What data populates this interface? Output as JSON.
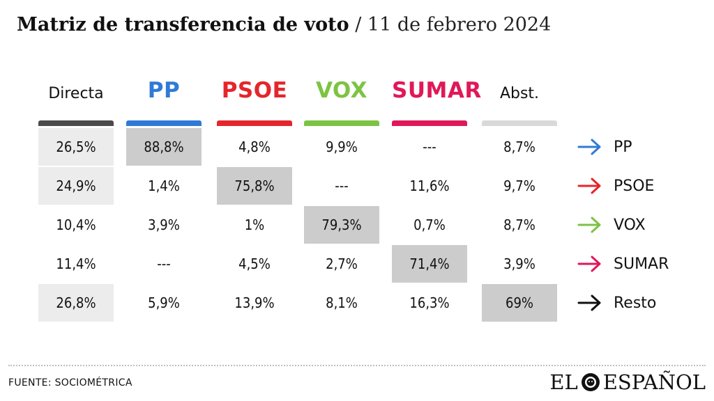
{
  "title": {
    "bold": "Matriz de transferencia de voto",
    "separator": "/",
    "date": "11 de febrero 2024"
  },
  "chart_data": {
    "type": "table",
    "title": "Matriz de transferencia de voto / 11 de febrero 2024",
    "columns": [
      {
        "label": "Directa",
        "color": "#4a4a4a",
        "style": "plain"
      },
      {
        "label": "PP",
        "color": "#2f7ad6",
        "style": "party"
      },
      {
        "label": "PSOE",
        "color": "#e4262c",
        "style": "party"
      },
      {
        "label": "VOX",
        "color": "#7dc343",
        "style": "party"
      },
      {
        "label": "SUMAR",
        "color": "#e0185a",
        "style": "party"
      },
      {
        "label": "Abst.",
        "color": "#d9d9d9",
        "style": "plain"
      }
    ],
    "rows": [
      {
        "label": "PP",
        "arrow_color": "#2f7ad6",
        "values": [
          "26,5%",
          "88,8%",
          "4,8%",
          "9,9%",
          "---",
          "8,7%"
        ]
      },
      {
        "label": "PSOE",
        "arrow_color": "#e4262c",
        "values": [
          "24,9%",
          "1,4%",
          "75,8%",
          "---",
          "11,6%",
          "9,7%"
        ]
      },
      {
        "label": "VOX",
        "arrow_color": "#7dc343",
        "values": [
          "10,4%",
          "3,9%",
          "1%",
          "79,3%",
          "0,7%",
          "8,7%"
        ]
      },
      {
        "label": "SUMAR",
        "arrow_color": "#e0185a",
        "values": [
          "11,4%",
          "---",
          "4,5%",
          "2,7%",
          "71,4%",
          "3,9%"
        ]
      },
      {
        "label": "Resto",
        "arrow_color": "#111111",
        "values": [
          "26,8%",
          "5,9%",
          "13,9%",
          "8,1%",
          "16,3%",
          "69%"
        ]
      }
    ],
    "highlighted_diagonal": [
      "PP→PP",
      "PSOE→PSOE",
      "VOX→VOX",
      "SUMAR→SUMAR",
      "Resto→Abst."
    ]
  },
  "footer": {
    "source": "FUENTE: SOCIOMÉTRICA",
    "brand_left": "EL",
    "brand_right": "ESPAÑOL"
  }
}
